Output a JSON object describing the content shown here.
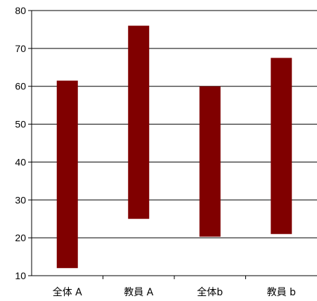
{
  "chart_data": {
    "type": "bar",
    "subtype": "floating-range",
    "categories": [
      "全体 A",
      "教員 A",
      "全体b",
      "教員 b"
    ],
    "series": [
      {
        "low": [
          12,
          25,
          20.3,
          21
        ],
        "high": [
          61.5,
          76,
          60,
          67.5
        ]
      }
    ],
    "ylim": [
      10,
      80
    ],
    "yticks": [
      10,
      20,
      30,
      40,
      50,
      60,
      70,
      80
    ],
    "ylabel": "",
    "grid": true,
    "bar_color": "#800000",
    "ylabel_color": "#ff0000"
  }
}
